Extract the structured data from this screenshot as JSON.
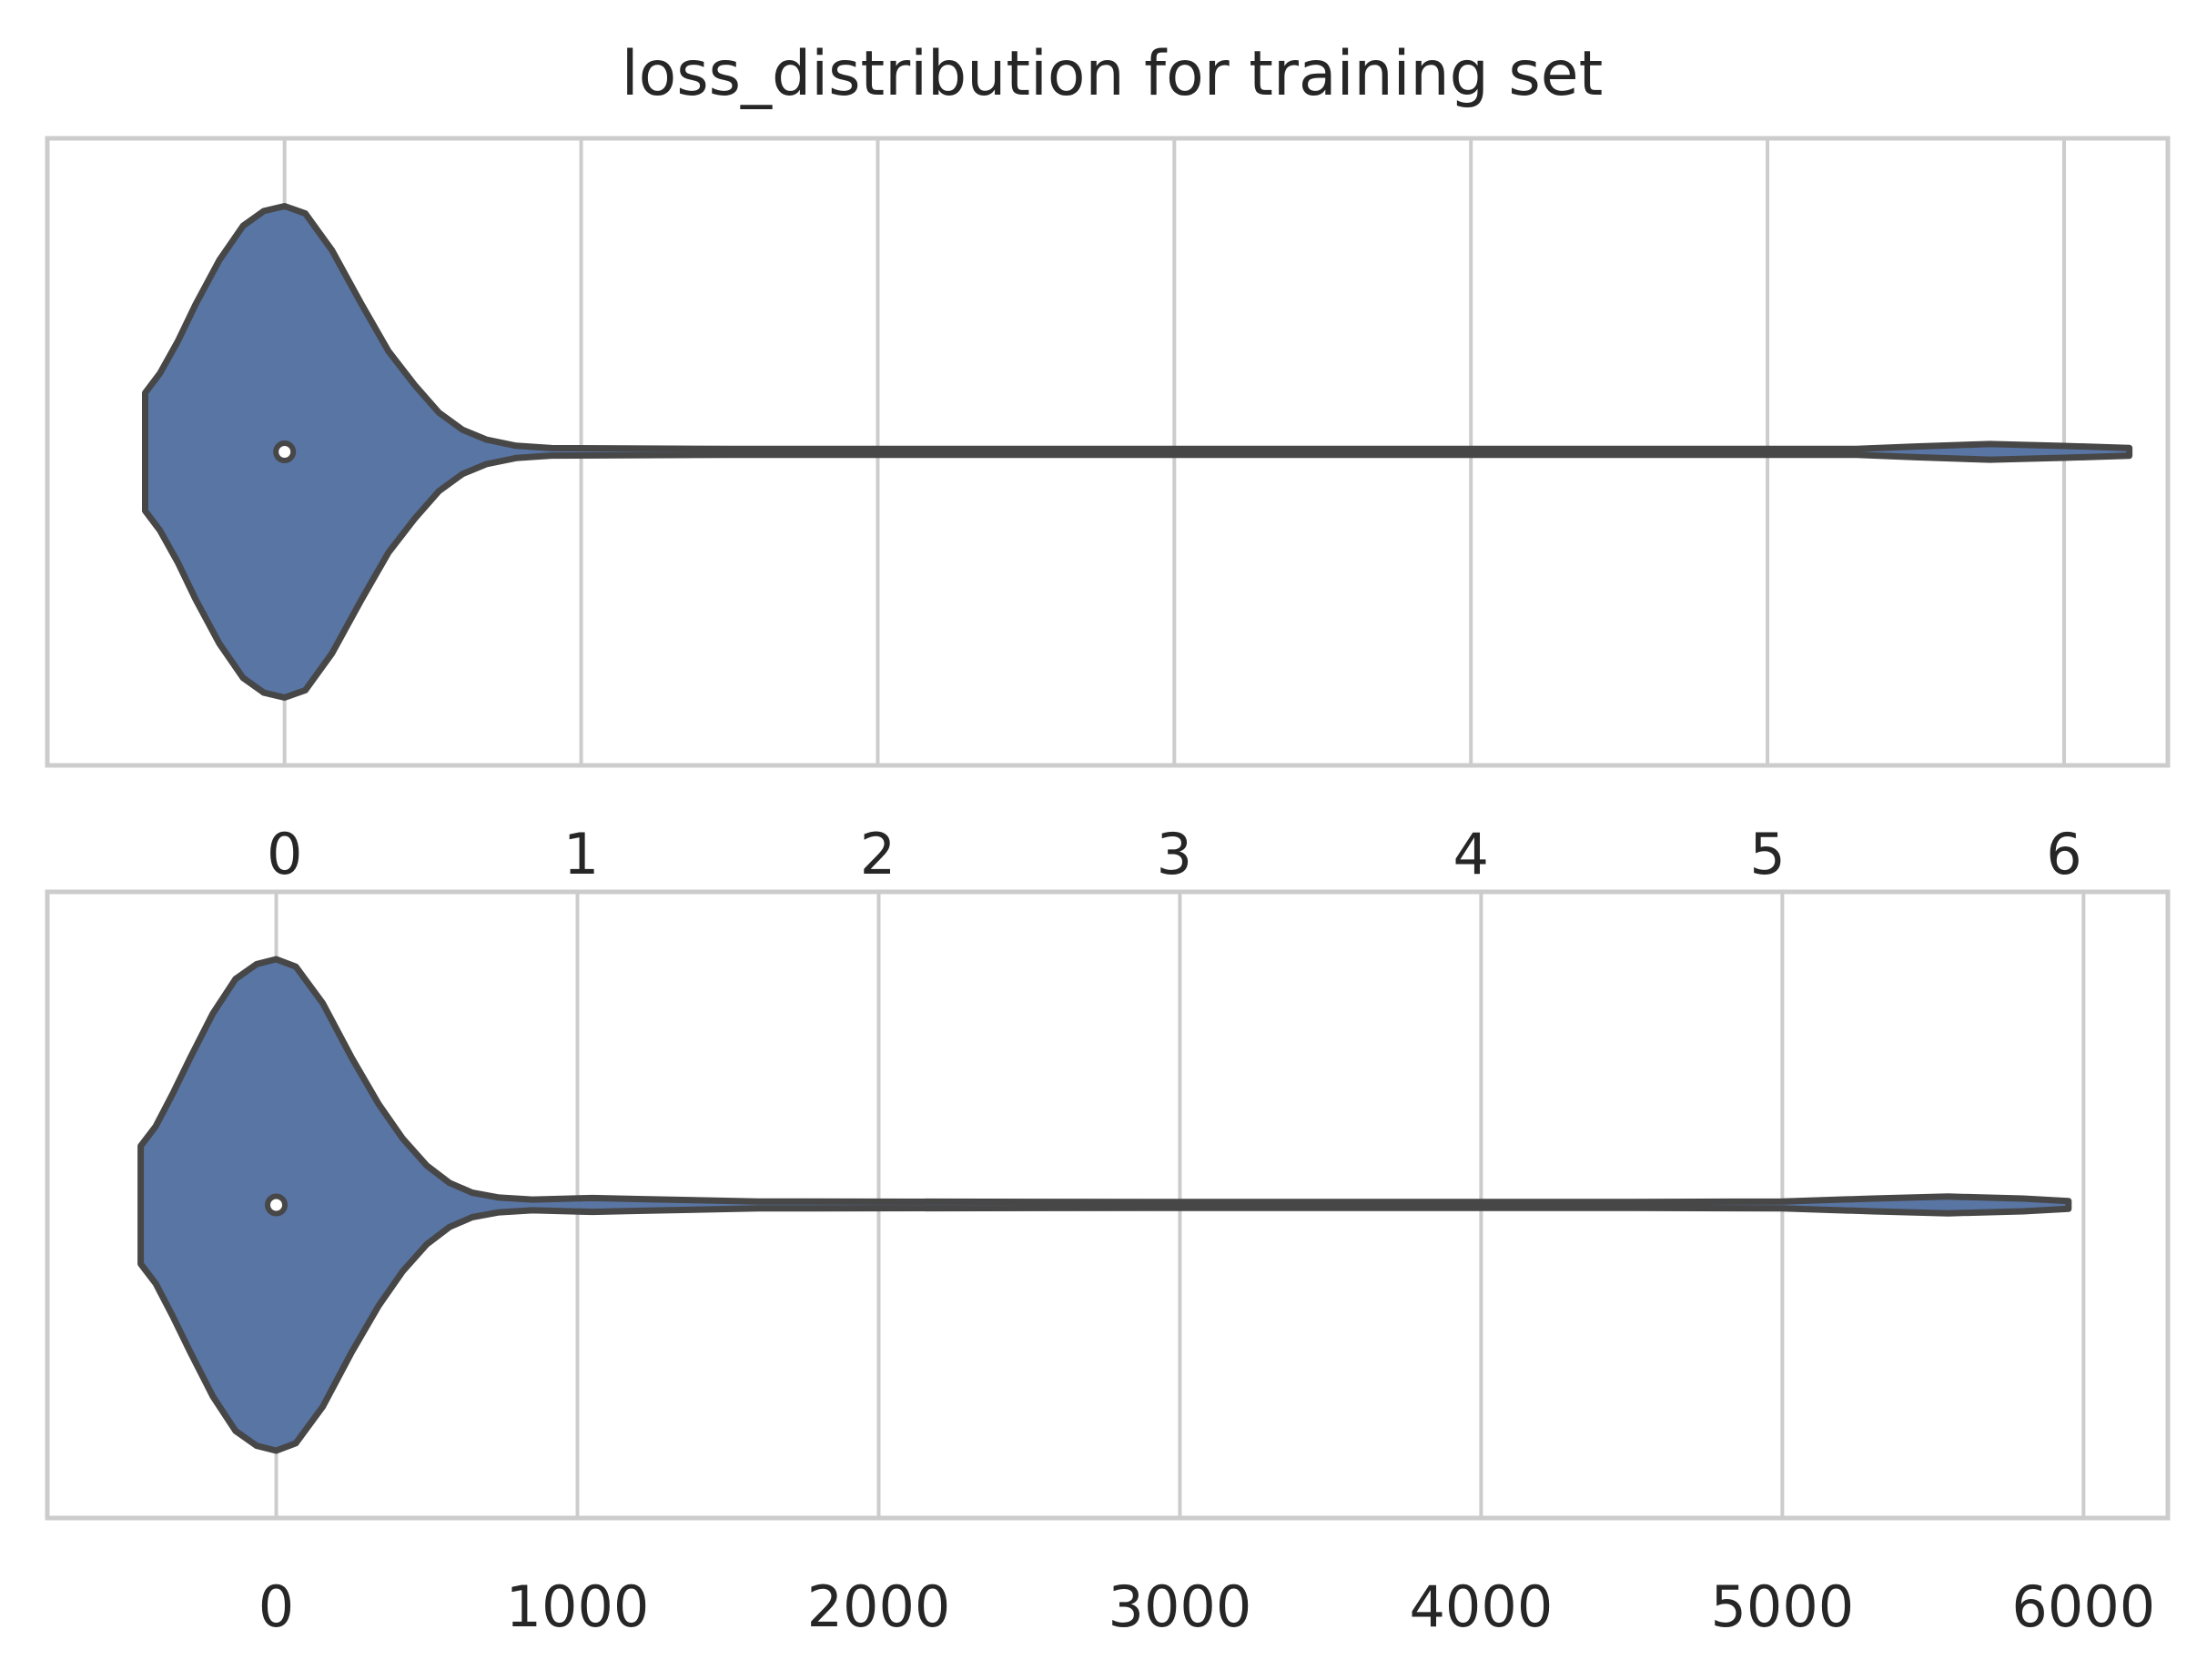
{
  "chart_data": [
    {
      "type": "violin",
      "title": "loss_distribution for training set",
      "orientation": "horizontal",
      "xlim": [
        -0.8,
        6.35
      ],
      "ticks": [
        0,
        1,
        2,
        3,
        4,
        5,
        6
      ],
      "tick_labels": [
        "0",
        "1",
        "2",
        "3",
        "4",
        "5",
        "6"
      ],
      "grid": true,
      "median": 0,
      "fill_color": "#5975a4",
      "edge_color": "#474747",
      "density_profile": [
        [
          -0.47,
          0.14
        ],
        [
          -0.47,
          0.24
        ],
        [
          -0.42,
          0.32
        ],
        [
          -0.36,
          0.45
        ],
        [
          -0.3,
          0.6
        ],
        [
          -0.22,
          0.78
        ],
        [
          -0.14,
          0.92
        ],
        [
          -0.07,
          0.98
        ],
        [
          0.0,
          1.0
        ],
        [
          0.07,
          0.97
        ],
        [
          0.16,
          0.82
        ],
        [
          0.26,
          0.6
        ],
        [
          0.35,
          0.41
        ],
        [
          0.44,
          0.27
        ],
        [
          0.52,
          0.16
        ],
        [
          0.6,
          0.09
        ],
        [
          0.68,
          0.05
        ],
        [
          0.78,
          0.025
        ],
        [
          0.9,
          0.015
        ],
        [
          1.5,
          0.012
        ],
        [
          3.0,
          0.012
        ],
        [
          4.5,
          0.012
        ],
        [
          5.3,
          0.012
        ],
        [
          5.5,
          0.022
        ],
        [
          5.75,
          0.032
        ],
        [
          6.0,
          0.024
        ],
        [
          6.22,
          0.016
        ]
      ]
    },
    {
      "type": "violin",
      "title": "",
      "orientation": "horizontal",
      "xlim": [
        -760,
        6280
      ],
      "ticks": [
        0,
        1000,
        2000,
        3000,
        4000,
        5000,
        6000
      ],
      "tick_labels": [
        "0",
        "1000",
        "2000",
        "3000",
        "4000",
        "5000",
        "6000"
      ],
      "grid": true,
      "median": 0,
      "fill_color": "#5975a4",
      "edge_color": "#474747",
      "density_profile": [
        [
          -450,
          0.14
        ],
        [
          -450,
          0.24
        ],
        [
          -400,
          0.32
        ],
        [
          -345,
          0.45
        ],
        [
          -285,
          0.6
        ],
        [
          -210,
          0.78
        ],
        [
          -135,
          0.92
        ],
        [
          -65,
          0.98
        ],
        [
          0,
          1.0
        ],
        [
          65,
          0.97
        ],
        [
          155,
          0.82
        ],
        [
          250,
          0.6
        ],
        [
          340,
          0.41
        ],
        [
          420,
          0.27
        ],
        [
          500,
          0.16
        ],
        [
          575,
          0.09
        ],
        [
          650,
          0.05
        ],
        [
          740,
          0.03
        ],
        [
          850,
          0.022
        ],
        [
          1050,
          0.028
        ],
        [
          1200,
          0.024
        ],
        [
          1600,
          0.014
        ],
        [
          3000,
          0.012
        ],
        [
          4500,
          0.012
        ],
        [
          5000,
          0.014
        ],
        [
          5300,
          0.026
        ],
        [
          5550,
          0.034
        ],
        [
          5800,
          0.026
        ],
        [
          5950,
          0.016
        ]
      ]
    }
  ]
}
